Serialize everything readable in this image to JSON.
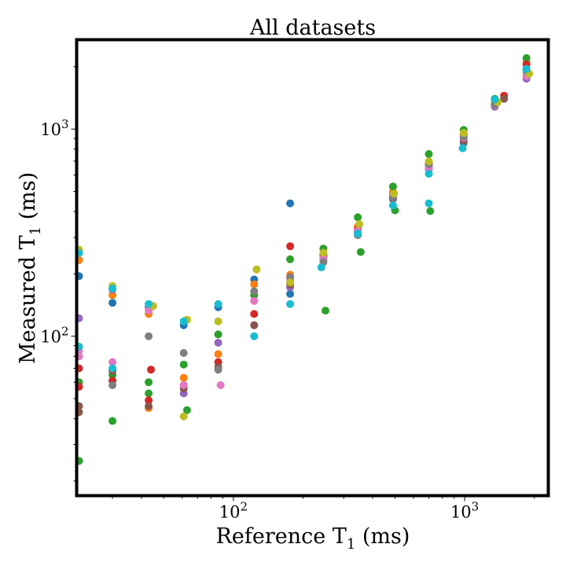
{
  "chart_data": {
    "type": "scatter",
    "title": "All datasets",
    "xlabel": "Reference T1 (ms)",
    "xlabel_main": "Reference T",
    "xlabel_sub": "1",
    "xlabel_unit": " (ms)",
    "ylabel": "Measured T1 (ms)",
    "ylabel_main": "Measured T",
    "ylabel_sub": "1",
    "ylabel_unit": " (ms)",
    "x_scale": "log",
    "y_scale": "log",
    "xlim": [
      21,
      2300
    ],
    "ylim": [
      17,
      2700
    ],
    "x_ticks": [
      {
        "value": 100,
        "base": "10",
        "exp": "2"
      },
      {
        "value": 1000,
        "base": "10",
        "exp": "3"
      }
    ],
    "y_ticks": [
      {
        "value": 100,
        "base": "10",
        "exp": "2"
      },
      {
        "value": 1000,
        "base": "10",
        "exp": "3"
      }
    ],
    "grid": false,
    "legend": "none",
    "series": [
      {
        "color": "#1f77b4",
        "points": [
          [
            21.5,
            195
          ],
          [
            30,
            145
          ],
          [
            43,
            138
          ],
          [
            61,
            113
          ],
          [
            86,
            138
          ],
          [
            123,
            188
          ],
          [
            176,
            438
          ],
          [
            176,
            160
          ],
          [
            245,
            238
          ],
          [
            345,
            313
          ],
          [
            490,
            465
          ],
          [
            700,
            648
          ],
          [
            990,
            858
          ],
          [
            1350,
            1320
          ],
          [
            1850,
            1930
          ]
        ]
      },
      {
        "color": "#ff7f0e",
        "points": [
          [
            21.5,
            233
          ],
          [
            30,
            158
          ],
          [
            43,
            128
          ],
          [
            43,
            45
          ],
          [
            61,
            63
          ],
          [
            86,
            82
          ],
          [
            123,
            178
          ],
          [
            176,
            198
          ],
          [
            245,
            248
          ],
          [
            345,
            338
          ],
          [
            490,
            498
          ],
          [
            700,
            688
          ],
          [
            990,
            928
          ],
          [
            1350,
            1340
          ],
          [
            1850,
            2100
          ]
        ]
      },
      {
        "color": "#2ca02c",
        "points": [
          [
            21.5,
            60
          ],
          [
            21.5,
            25
          ],
          [
            30,
            65
          ],
          [
            30,
            39
          ],
          [
            43,
            53
          ],
          [
            43,
            60
          ],
          [
            61,
            73
          ],
          [
            63,
            44
          ],
          [
            86,
            102
          ],
          [
            123,
            158
          ],
          [
            176,
            235
          ],
          [
            245,
            265
          ],
          [
            250,
            133
          ],
          [
            345,
            375
          ],
          [
            355,
            255
          ],
          [
            490,
            528
          ],
          [
            500,
            405
          ],
          [
            700,
            758
          ],
          [
            710,
            402
          ],
          [
            990,
            990
          ],
          [
            1350,
            1400
          ],
          [
            1850,
            2200
          ]
        ]
      },
      {
        "color": "#d62728",
        "points": [
          [
            21.5,
            70
          ],
          [
            21.5,
            57
          ],
          [
            30,
            61
          ],
          [
            43,
            49
          ],
          [
            44,
            69
          ],
          [
            61,
            58
          ],
          [
            86,
            75
          ],
          [
            123,
            128
          ],
          [
            176,
            272
          ],
          [
            245,
            248
          ],
          [
            345,
            328
          ],
          [
            490,
            478
          ],
          [
            700,
            678
          ],
          [
            990,
            948
          ],
          [
            1480,
            1450
          ],
          [
            1850,
            2050
          ]
        ]
      },
      {
        "color": "#9467bd",
        "points": [
          [
            21.5,
            122
          ],
          [
            30,
            168
          ],
          [
            43,
            138
          ],
          [
            61,
            53
          ],
          [
            86,
            93
          ],
          [
            123,
            113
          ],
          [
            176,
            172
          ],
          [
            245,
            233
          ],
          [
            345,
            308
          ],
          [
            490,
            458
          ],
          [
            700,
            638
          ],
          [
            990,
            898
          ],
          [
            1350,
            1280
          ],
          [
            1850,
            1750
          ]
        ]
      },
      {
        "color": "#8c564b",
        "points": [
          [
            21.5,
            43
          ],
          [
            21.5,
            46
          ],
          [
            30,
            68
          ],
          [
            43,
            46
          ],
          [
            61,
            56
          ],
          [
            86,
            71
          ],
          [
            123,
            113
          ],
          [
            176,
            178
          ],
          [
            245,
            243
          ],
          [
            345,
            318
          ],
          [
            490,
            463
          ],
          [
            700,
            668
          ],
          [
            990,
            878
          ],
          [
            1480,
            1400
          ],
          [
            1850,
            1950
          ]
        ]
      },
      {
        "color": "#e377c2",
        "points": [
          [
            21.5,
            80
          ],
          [
            21.5,
            85
          ],
          [
            30,
            75
          ],
          [
            43,
            133
          ],
          [
            61,
            58
          ],
          [
            88,
            58
          ],
          [
            123,
            148
          ],
          [
            176,
            188
          ],
          [
            245,
            238
          ],
          [
            345,
            323
          ],
          [
            490,
            478
          ],
          [
            700,
            648
          ],
          [
            990,
            908
          ],
          [
            1350,
            1300
          ],
          [
            1850,
            1800
          ]
        ]
      },
      {
        "color": "#7f7f7f",
        "points": [
          [
            21.5,
            258
          ],
          [
            30,
            58
          ],
          [
            43,
            100
          ],
          [
            61,
            83
          ],
          [
            86,
            69
          ],
          [
            123,
            165
          ],
          [
            176,
            193
          ],
          [
            245,
            228
          ],
          [
            345,
            308
          ],
          [
            490,
            468
          ],
          [
            700,
            678
          ],
          [
            990,
            918
          ],
          [
            1350,
            1310
          ],
          [
            1850,
            1900
          ]
        ]
      },
      {
        "color": "#bcbd22",
        "points": [
          [
            21.5,
            262
          ],
          [
            30,
            175
          ],
          [
            45,
            140
          ],
          [
            61,
            41
          ],
          [
            63,
            120
          ],
          [
            86,
            118
          ],
          [
            126,
            210
          ],
          [
            176,
            182
          ],
          [
            245,
            253
          ],
          [
            350,
            348
          ],
          [
            495,
            488
          ],
          [
            700,
            698
          ],
          [
            990,
            958
          ],
          [
            1390,
            1350
          ],
          [
            1900,
            1850
          ]
        ]
      },
      {
        "color": "#17becf",
        "points": [
          [
            21.5,
            89
          ],
          [
            21.5,
            252
          ],
          [
            30,
            70
          ],
          [
            30,
            170
          ],
          [
            43,
            143
          ],
          [
            61,
            118
          ],
          [
            86,
            143
          ],
          [
            123,
            100
          ],
          [
            176,
            143
          ],
          [
            240,
            215
          ],
          [
            345,
            313
          ],
          [
            490,
            428
          ],
          [
            700,
            608
          ],
          [
            700,
            438
          ],
          [
            980,
            808
          ],
          [
            1350,
            1390
          ],
          [
            1850,
            1950
          ]
        ]
      }
    ]
  }
}
